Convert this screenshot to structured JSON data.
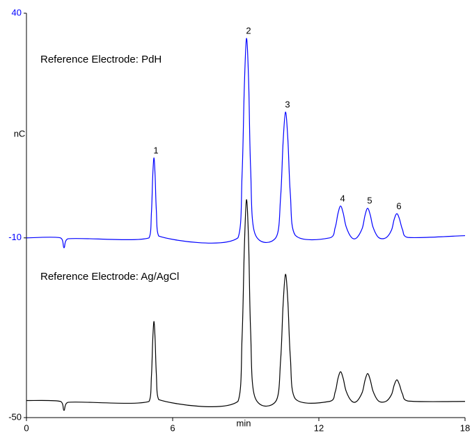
{
  "chart_data": {
    "type": "line",
    "x_label": "min",
    "y_label": "nC",
    "x": [
      0,
      1.4,
      1.54,
      1.7,
      5.03,
      5.13,
      5.18,
      5.23,
      5.28,
      5.33,
      5.43,
      8.68,
      8.85,
      8.94,
      9.03,
      9.12,
      9.2,
      9.38,
      10.23,
      10.43,
      10.53,
      10.63,
      10.73,
      10.83,
      11.03,
      12.44,
      12.67,
      12.78,
      12.89,
      13.0,
      13.12,
      13.34,
      13.55,
      13.78,
      13.89,
      14.0,
      14.11,
      14.23,
      14.45,
      14.75,
      14.98,
      15.09,
      15.2,
      15.31,
      15.43,
      15.65,
      18
    ],
    "series": [
      {
        "name": "Reference Electrode: PdH",
        "color": "#0000ff",
        "values": [
          -10,
          -10,
          -12.2,
          -10.2,
          -10,
          -4.3,
          3.4,
          7.8,
          3.9,
          -3.8,
          -9.6,
          -10,
          4.2,
          23.3,
          34.4,
          24.6,
          5.5,
          -9.1,
          -10,
          -1.0,
          11.0,
          18.0,
          11.8,
          -0.2,
          -9.4,
          -10,
          -7.7,
          -4.7,
          -2.9,
          -4.5,
          -7.5,
          -9.9,
          -10,
          -7.9,
          -5.1,
          -3.4,
          -4.9,
          -7.7,
          -9.9,
          -10,
          -8.3,
          -5.9,
          -4.6,
          -5.8,
          -8.1,
          -9.9,
          -9.5
        ]
      },
      {
        "name": "Reference Electrode: Ag/AgCl",
        "color": "#000000",
        "values": [
          -46.2,
          -46.4,
          -48.4,
          -46.6,
          -46.4,
          -40.7,
          -33.1,
          -28.6,
          -32.5,
          -40.2,
          -46.0,
          -46.4,
          -32.0,
          -12.7,
          -1.5,
          -11.4,
          -30.7,
          -45.5,
          -46.4,
          -37.3,
          -25.2,
          -18.1,
          -24.3,
          -36.5,
          -45.8,
          -46.4,
          -44.3,
          -41.4,
          -39.8,
          -41.3,
          -44.1,
          -46.3,
          -46.4,
          -44.4,
          -41.8,
          -40.2,
          -41.6,
          -44.2,
          -46.3,
          -46.4,
          -44.9,
          -42.8,
          -41.6,
          -42.7,
          -44.7,
          -46.3,
          -46.4
        ]
      }
    ],
    "annotations": [
      {
        "text": "1",
        "x": 5.23,
        "y": 7.8
      },
      {
        "text": "2",
        "x": 9.03,
        "y": 34.4
      },
      {
        "text": "3",
        "x": 10.63,
        "y": 18.0
      },
      {
        "text": "4",
        "x": 12.89,
        "y": -2.9
      },
      {
        "text": "5",
        "x": 14.0,
        "y": -3.4
      },
      {
        "text": "6",
        "x": 15.2,
        "y": -4.6
      }
    ],
    "xlim": [
      0,
      18
    ],
    "xticks": [
      0,
      6,
      12,
      18
    ],
    "ylim": [
      -50,
      40
    ],
    "yticks": [
      40,
      -10,
      -50
    ],
    "ytick_colors": [
      "#0000ff",
      "#0000ff",
      "#000000"
    ],
    "grid": false
  }
}
